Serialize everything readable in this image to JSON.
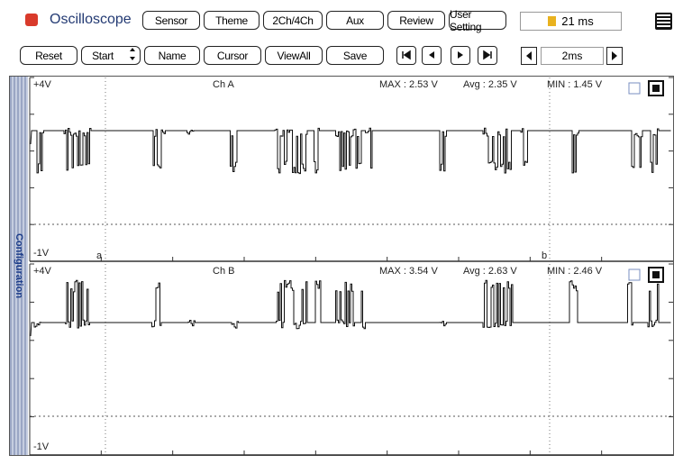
{
  "header": {
    "title": "Oscilloscope",
    "tabs": [
      "Sensor",
      "Theme",
      "2Ch/4Ch",
      "Aux",
      "Review",
      "User Setting"
    ],
    "timer": "21 ms"
  },
  "toolbar": {
    "buttons": [
      "Reset",
      "Start",
      "Name",
      "Cursor",
      "ViewAll",
      "Save"
    ],
    "timebase": "2ms"
  },
  "sidebar": {
    "label": "Configuration"
  },
  "channels": [
    {
      "top": "+4V",
      "name": "Ch A",
      "max": "MAX : 2.53 V",
      "avg": "Avg : 2.35 V",
      "min": "MIN : 1.45 V",
      "bottom": "-1V",
      "cursors": [
        "a",
        "b"
      ]
    },
    {
      "top": "+4V",
      "name": "Ch B",
      "max": "MAX : 3.54 V",
      "avg": "Avg : 2.63 V",
      "min": "MIN : 2.46 V",
      "bottom": "-1V"
    }
  ]
}
